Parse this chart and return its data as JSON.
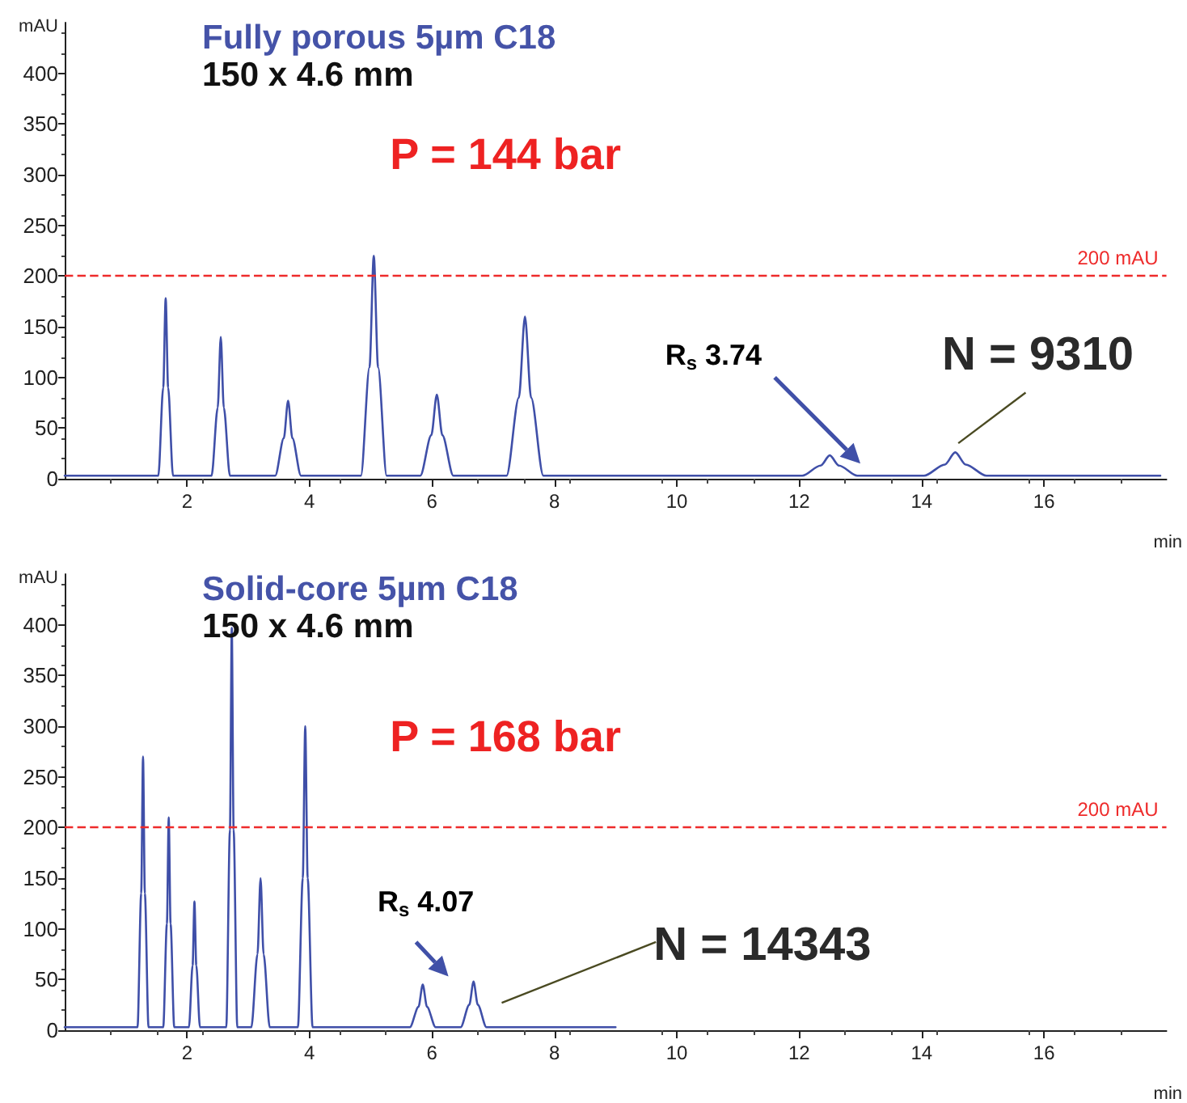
{
  "chart_data": [
    {
      "type": "line",
      "title": "Fully porous 5µm C18",
      "subtitle": "150 x 4.6 mm",
      "xlabel": "min",
      "ylabel": "mAU",
      "xlim": [
        0,
        18
      ],
      "xticks": [
        2,
        4,
        6,
        8,
        10,
        12,
        14,
        16
      ],
      "ylim": [
        0,
        450
      ],
      "yticks": [
        0,
        50,
        100,
        150,
        200,
        250,
        300,
        350,
        400
      ],
      "grid": false,
      "marker": "none",
      "line_style": "solid",
      "x": [
        0,
        1.53,
        1.61,
        1.65,
        1.69,
        1.77,
        2.4,
        2.5,
        2.55,
        2.6,
        2.7,
        3.44,
        3.58,
        3.65,
        3.72,
        3.86,
        4.84,
        4.98,
        5.05,
        5.12,
        5.26,
        5.81,
        5.99,
        6.08,
        6.17,
        6.35,
        7.22,
        7.42,
        7.52,
        7.62,
        7.82,
        12.05,
        12.35,
        12.5,
        12.65,
        12.95,
        14.04,
        14.38,
        14.55,
        14.72,
        15.06,
        17.9
      ],
      "series": [
        {
          "color": "#3f4fa8",
          "values": [
            3,
            3,
            90,
            178,
            90,
            3,
            3,
            70,
            140,
            70,
            3,
            3,
            40,
            77,
            40,
            3,
            3,
            110,
            220,
            110,
            3,
            3,
            43,
            83,
            43,
            3,
            3,
            80,
            160,
            80,
            3,
            3,
            13,
            23,
            13,
            3,
            3,
            14,
            26,
            14,
            3,
            3
          ]
        }
      ],
      "ref_lines": [
        {
          "axis": "y",
          "value": 200,
          "label": "200 mAU",
          "color": "#ee2b2b",
          "line_style": "dashed"
        }
      ],
      "annotations": [
        "P = 144 bar",
        "R$_{s}$ 3.74",
        "N = 9310"
      ]
    },
    {
      "type": "line",
      "title": "Solid-core 5µm C18",
      "subtitle": "150 x 4.6 mm",
      "xlabel": "min",
      "ylabel": "mAU",
      "xlim": [
        0,
        18
      ],
      "xticks": [
        2,
        4,
        6,
        8,
        10,
        12,
        14,
        16
      ],
      "ylim": [
        0,
        450
      ],
      "yticks": [
        0,
        50,
        100,
        150,
        200,
        250,
        300,
        350,
        400
      ],
      "grid": false,
      "marker": "none",
      "line_style": "solid",
      "x": [
        0,
        1.19,
        1.25,
        1.28,
        1.31,
        1.37,
        1.61,
        1.67,
        1.7,
        1.73,
        1.79,
        2.03,
        2.09,
        2.12,
        2.15,
        2.21,
        2.64,
        2.7,
        2.73,
        2.76,
        2.82,
        3.05,
        3.15,
        3.2,
        3.25,
        3.35,
        3.81,
        3.89,
        3.93,
        3.97,
        4.05,
        5.64,
        5.78,
        5.85,
        5.92,
        6.06,
        6.47,
        6.61,
        6.68,
        6.75,
        6.89,
        9
      ],
      "series": [
        {
          "color": "#3f4fa8",
          "values": [
            3,
            3,
            135,
            270,
            135,
            3,
            3,
            105,
            210,
            105,
            3,
            3,
            64,
            127,
            64,
            3,
            3,
            198,
            397,
            198,
            3,
            3,
            75,
            150,
            75,
            3,
            3,
            150,
            300,
            150,
            3,
            3,
            23,
            45,
            23,
            3,
            3,
            25,
            48,
            25,
            3,
            3
          ]
        }
      ],
      "ref_lines": [
        {
          "axis": "y",
          "value": 200,
          "label": "200 mAU",
          "color": "#ee2b2b",
          "line_style": "dashed"
        }
      ],
      "annotations": [
        "P = 168 bar",
        "R$_{s}$ 4.07",
        "N = 14343"
      ]
    }
  ]
}
